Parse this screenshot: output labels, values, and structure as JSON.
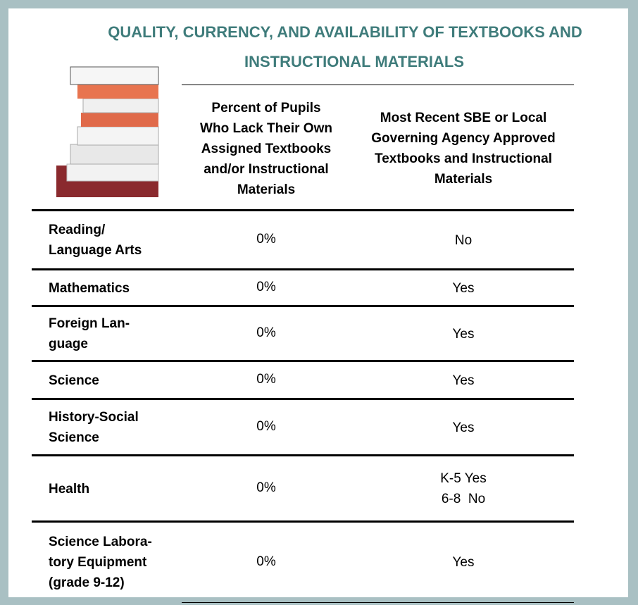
{
  "header": {
    "title_lines": [
      "QUALITY, CURRENCY, AND AVAILABILITY OF TEXTBOOKS AND",
      "INSTRUCTIONAL MATERIALS"
    ]
  },
  "table": {
    "columns": [
      [
        "Percent of Pupils",
        "Who Lack Their Own",
        "Assigned Textbooks",
        "and/or Instructional",
        "Materials"
      ],
      [
        "Most Recent SBE or Local",
        "Governing Agency Approved",
        "Textbooks and Instructional",
        "Materials"
      ]
    ],
    "rows": [
      {
        "label": [
          "Reading/",
          "Language Arts"
        ],
        "percent": "0%",
        "approved": [
          "No"
        ]
      },
      {
        "label": [
          "Mathematics"
        ],
        "percent": "0%",
        "approved": [
          "Yes"
        ]
      },
      {
        "label": [
          "Foreign Lan-",
          "guage"
        ],
        "percent": "0%",
        "approved": [
          "Yes"
        ]
      },
      {
        "label": [
          "Science"
        ],
        "percent": "0%",
        "approved": [
          "Yes"
        ]
      },
      {
        "label": [
          "History-Social",
          "Science"
        ],
        "percent": "0%",
        "approved": [
          "Yes"
        ]
      },
      {
        "label": [
          "Health"
        ],
        "percent": "0%",
        "approved": [
          "K-5 Yes",
          "6-8  No"
        ]
      },
      {
        "label": [
          "Science Labora-",
          "tory Equipment",
          "(grade 9-12)"
        ],
        "percent": "0%",
        "approved": [
          "Yes"
        ]
      }
    ]
  }
}
